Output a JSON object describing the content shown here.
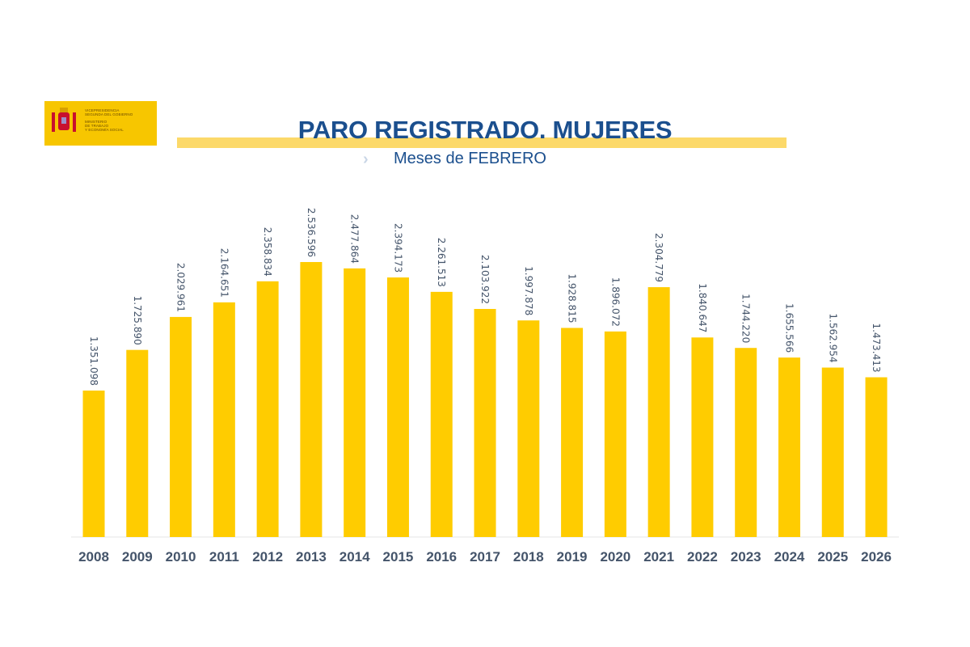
{
  "logo": {
    "line1": "VICEPRESIDENCIA",
    "line2": "SEGUNDA DEL GOBIERNO",
    "line3": "MINISTERIO",
    "line4": "DE TRABAJO",
    "line5": "Y ECONOMÍA SOCIAL"
  },
  "chart_data": {
    "type": "bar",
    "title": "PARO REGISTRADO. MUJERES",
    "subtitle": "Meses de FEBRERO",
    "xlabel": "",
    "ylabel": "",
    "ylim": [
      0,
      2536596
    ],
    "grid": false,
    "categories": [
      "2008",
      "2009",
      "2010",
      "2011",
      "2012",
      "2013",
      "2014",
      "2015",
      "2016",
      "2017",
      "2018",
      "2019",
      "2020",
      "2021",
      "2022",
      "2023",
      "2024",
      "2025",
      "2026"
    ],
    "values": [
      1351098,
      1725890,
      2029961,
      2164651,
      2358834,
      2536596,
      2477864,
      2394173,
      2261513,
      2103922,
      1997878,
      1928815,
      1896072,
      2304779,
      1840647,
      1744220,
      1655566,
      1562954,
      1473413
    ],
    "labels": [
      "1.351.098",
      "1.725.890",
      "2.029.961",
      "2.164.651",
      "2.358.834",
      "2.536.596",
      "2.477.864",
      "2.394.173",
      "2.261.513",
      "2.103.922",
      "1.997.878",
      "1.928.815",
      "1.896.072",
      "2.304.779",
      "1.840.647",
      "1.744.220",
      "1.655.566",
      "1.562.954",
      "1.473.413"
    ],
    "colors": {
      "bar": "#ffcc00",
      "label": "#44546a",
      "tick": "#44546a",
      "title": "#1b4f8e"
    }
  }
}
